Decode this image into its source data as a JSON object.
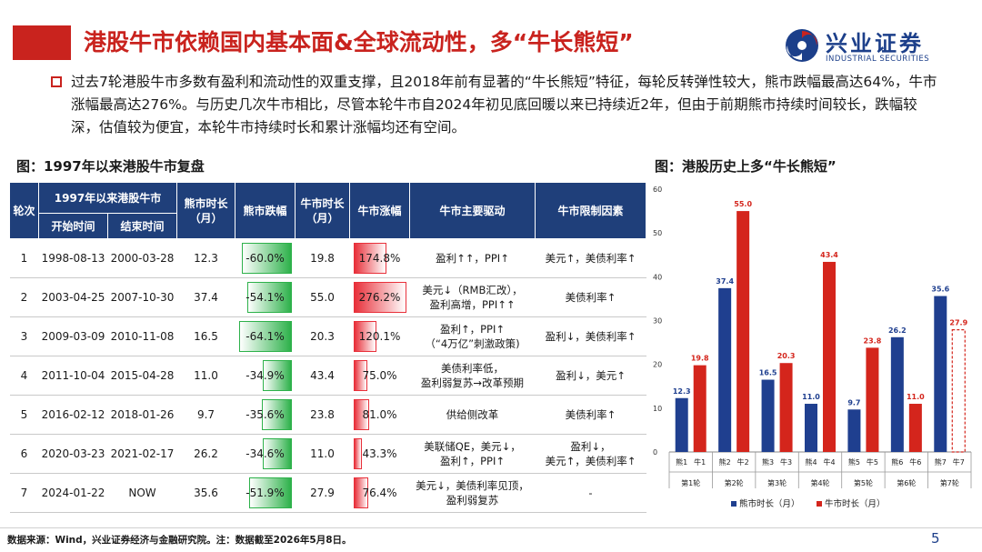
{
  "header": {
    "title": "港股牛市依赖国内基本面&全球流动性，多“牛长熊短”",
    "logo_cn": "兴业证券",
    "logo_en": "INDUSTRIAL SECURITIES"
  },
  "summary": "过去7轮港股牛市多数有盈利和流动性的双重支撑，且2018年前有显著的“牛长熊短”特征，每轮反转弹性较大，熊市跌幅最高达64%，牛市涨幅最高达276%。与历史几次牛市相比，尽管本轮牛市自2024年初见底回暖以来已持续近2年，但由于前期熊市持续时间较长，跌幅较深，估值较为便宜，本轮牛市持续时长和累计涨幅均还有空间。",
  "table_title": "图：1997年以来港股牛市复盘",
  "chart_title": "图：港股历史上多“牛长熊短”",
  "table": {
    "headers": {
      "round": "轮次",
      "group": "1997年以来港股牛市",
      "start": "开始时间",
      "end": "结束时间",
      "bear_len": "熊市时长（月）",
      "bear_drop": "熊市跌幅",
      "bull_len": "牛市时长（月）",
      "bull_gain": "牛市涨幅",
      "drivers": "牛市主要驱动",
      "limits": "牛市限制因素"
    },
    "rows": [
      {
        "round": "1",
        "start": "1998-08-13",
        "end": "2000-03-28",
        "bear_len": "12.3",
        "bear_drop": "-60.0%",
        "bear_drop_v": 60.0,
        "bull_len": "19.8",
        "bull_gain": "174.8%",
        "bull_gain_v": 174.8,
        "drivers": [
          "盈利↑↑，PPI↑"
        ],
        "limits": [
          "美元↑，美债利率↑"
        ],
        "highlight": false
      },
      {
        "round": "2",
        "start": "2003-04-25",
        "end": "2007-10-30",
        "bear_len": "37.4",
        "bear_drop": "-54.1%",
        "bear_drop_v": 54.1,
        "bull_len": "55.0",
        "bull_gain": "276.2%",
        "bull_gain_v": 276.2,
        "drivers": [
          "美元↓（RMB汇改），",
          "盈利高增，PPI↑↑"
        ],
        "limits": [
          "美债利率↑"
        ],
        "highlight": false
      },
      {
        "round": "3",
        "start": "2009-03-09",
        "end": "2010-11-08",
        "bear_len": "16.5",
        "bear_drop": "-64.1%",
        "bear_drop_v": 64.1,
        "bull_len": "20.3",
        "bull_gain": "120.1%",
        "bull_gain_v": 120.1,
        "drivers": [
          "盈利↑，PPI↑",
          "（“4万亿”刺激政策)"
        ],
        "limits": [
          "盈利↓，美债利率↑"
        ],
        "highlight": false
      },
      {
        "round": "4",
        "start": "2011-10-04",
        "end": "2015-04-28",
        "bear_len": "11.0",
        "bear_drop": "-34.9%",
        "bear_drop_v": 34.9,
        "bull_len": "43.4",
        "bull_gain": "75.0%",
        "bull_gain_v": 75.0,
        "drivers": [
          "美债利率低，",
          "盈利弱复苏→改革预期"
        ],
        "limits": [
          "盈利↓，美元↑"
        ],
        "highlight": false
      },
      {
        "round": "5",
        "start": "2016-02-12",
        "end": "2018-01-26",
        "bear_len": "9.7",
        "bear_drop": "-35.6%",
        "bear_drop_v": 35.6,
        "bull_len": "23.8",
        "bull_gain": "81.0%",
        "bull_gain_v": 81.0,
        "drivers": [
          "供给侧改革"
        ],
        "limits": [
          "美债利率↑"
        ],
        "highlight": false
      },
      {
        "round": "6",
        "start": "2020-03-23",
        "end": "2021-02-17",
        "bear_len": "26.2",
        "bear_drop": "-34.6%",
        "bear_drop_v": 34.6,
        "bull_len": "11.0",
        "bull_gain": "43.3%",
        "bull_gain_v": 43.3,
        "drivers": [
          "美联储QE，美元↓，",
          "盈利↑，PPI↑"
        ],
        "limits": [
          "盈利↓，",
          "美元↑，美债利率↑"
        ],
        "highlight": false
      },
      {
        "round": "7",
        "start": "2024-01-22",
        "end": "NOW",
        "bear_len": "35.6",
        "bear_drop": "-51.9%",
        "bear_drop_v": 51.9,
        "bull_len": "27.9",
        "bull_gain": "76.4%",
        "bull_gain_v": 76.4,
        "drivers": [
          "美元↓，美债利率见顶，",
          "盈利弱复苏"
        ],
        "limits": [
          "-"
        ],
        "highlight": true
      }
    ]
  },
  "chart_data": {
    "type": "bar",
    "ylim": [
      0,
      60
    ],
    "yticks": [
      0,
      10,
      20,
      30,
      40,
      50,
      60
    ],
    "groups": [
      "第1轮",
      "第2轮",
      "第3轮",
      "第4轮",
      "第5轮",
      "第6轮",
      "第7轮"
    ],
    "bear_labels": [
      "熊1",
      "熊2",
      "熊3",
      "熊4",
      "熊5",
      "熊6",
      "熊7"
    ],
    "bull_labels": [
      "牛1",
      "牛2",
      "牛3",
      "牛4",
      "牛5",
      "牛6",
      "牛7"
    ],
    "series": [
      {
        "name": "熊市时长（月）",
        "color": "#1f3f8f",
        "values": [
          12.3,
          37.4,
          16.5,
          11.0,
          9.7,
          26.2,
          35.6
        ]
      },
      {
        "name": "牛市时长（月）",
        "color": "#d4251c",
        "values": [
          19.8,
          55.0,
          20.3,
          43.4,
          23.8,
          11.0,
          27.9
        ]
      }
    ],
    "dashed_last_bull": true,
    "legend_position": "bottom"
  },
  "footer": {
    "source": "数据来源：Wind，兴业证券经济与金融研究院。注：数据截至2026年5月8日。",
    "page": "5"
  }
}
